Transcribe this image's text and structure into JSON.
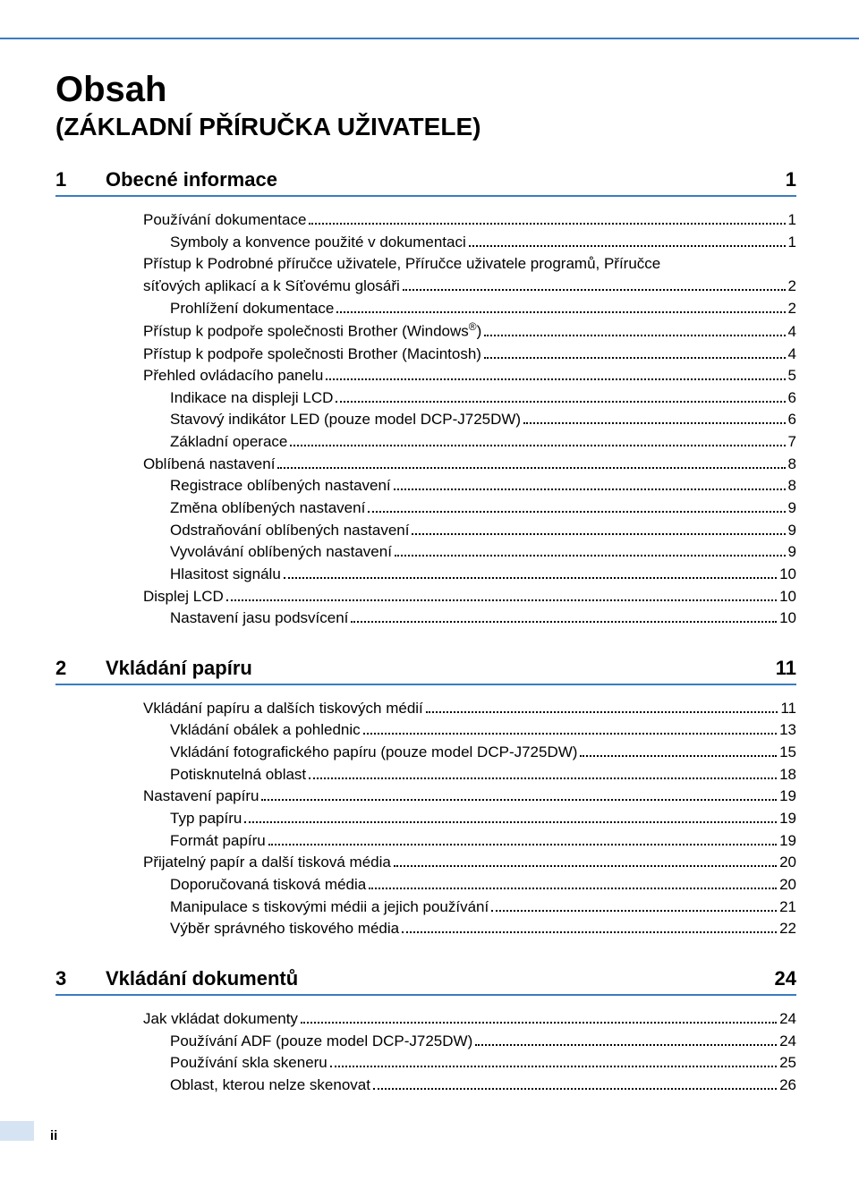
{
  "colors": {
    "rule": "#3b7bbf",
    "tab_bg": "#d6e3f2",
    "text": "#000000",
    "bg": "#ffffff"
  },
  "typography": {
    "title_size": 40,
    "subtitle_size": 28,
    "section_size": 22,
    "entry_size": 17,
    "family": "Arial"
  },
  "title": "Obsah",
  "subtitle": "(ZÁKLADNÍ PŘÍRUČKA UŽIVATELE)",
  "footer_page": "ii",
  "sections": [
    {
      "num": "1",
      "title": "Obecné informace",
      "page": "1",
      "entries": [
        {
          "t": "Používání dokumentace",
          "p": "1",
          "i": 0
        },
        {
          "t": "Symboly a konvence použité v dokumentaci",
          "p": "1",
          "i": 1
        },
        {
          "t": "Přístup k Podrobné příručce uživatele, Příručce uživatele programů, Příručce síťových aplikací a k Síťovému glosáři",
          "p": "2",
          "i": 0,
          "wrap": true
        },
        {
          "t": "Prohlížení dokumentace",
          "p": "2",
          "i": 1
        },
        {
          "t": "Přístup k podpoře společnosti Brother (Windows",
          "suffix": ")",
          "sup": "®",
          "p": "4",
          "i": 0
        },
        {
          "t": "Přístup k podpoře společnosti Brother (Macintosh)",
          "p": "4",
          "i": 0
        },
        {
          "t": "Přehled ovládacího panelu",
          "p": "5",
          "i": 0
        },
        {
          "t": "Indikace na displeji LCD",
          "p": "6",
          "i": 1
        },
        {
          "t": "Stavový indikátor LED (pouze model DCP-J725DW)",
          "p": "6",
          "i": 1
        },
        {
          "t": "Základní operace",
          "p": "7",
          "i": 1
        },
        {
          "t": "Oblíbená nastavení",
          "p": "8",
          "i": 0
        },
        {
          "t": "Registrace oblíbených nastavení",
          "p": "8",
          "i": 1
        },
        {
          "t": "Změna oblíbených nastavení",
          "p": "9",
          "i": 1
        },
        {
          "t": "Odstraňování oblíbených nastavení",
          "p": "9",
          "i": 1
        },
        {
          "t": "Vyvolávání oblíbených nastavení",
          "p": "9",
          "i": 1
        },
        {
          "t": "Hlasitost signálu",
          "p": "10",
          "i": 1
        },
        {
          "t": "Displej LCD",
          "p": "10",
          "i": 0
        },
        {
          "t": "Nastavení jasu podsvícení",
          "p": "10",
          "i": 1
        }
      ]
    },
    {
      "num": "2",
      "title": "Vkládání papíru",
      "page": "11",
      "entries": [
        {
          "t": "Vkládání papíru a dalších tiskových médií",
          "p": "11",
          "i": 0
        },
        {
          "t": "Vkládání obálek a pohlednic",
          "p": "13",
          "i": 1
        },
        {
          "t": "Vkládání fotografického papíru (pouze model DCP-J725DW)",
          "p": "15",
          "i": 1
        },
        {
          "t": "Potisknutelná oblast",
          "p": "18",
          "i": 1
        },
        {
          "t": "Nastavení papíru",
          "p": "19",
          "i": 0
        },
        {
          "t": "Typ papíru",
          "p": "19",
          "i": 1
        },
        {
          "t": "Formát papíru",
          "p": "19",
          "i": 1
        },
        {
          "t": "Přijatelný papír a další tisková média",
          "p": "20",
          "i": 0
        },
        {
          "t": "Doporučovaná tisková média",
          "p": "20",
          "i": 1
        },
        {
          "t": "Manipulace s tiskovými médii a jejich používání",
          "p": "21",
          "i": 1
        },
        {
          "t": "Výběr správného tiskového média",
          "p": "22",
          "i": 1
        }
      ]
    },
    {
      "num": "3",
      "title": "Vkládání dokumentů",
      "page": "24",
      "entries": [
        {
          "t": "Jak vkládat dokumenty",
          "p": "24",
          "i": 0
        },
        {
          "t": "Používání ADF (pouze model DCP-J725DW)",
          "p": "24",
          "i": 1
        },
        {
          "t": "Používání skla skeneru",
          "p": "25",
          "i": 1
        },
        {
          "t": "Oblast, kterou nelze skenovat",
          "p": "26",
          "i": 1
        }
      ]
    }
  ]
}
